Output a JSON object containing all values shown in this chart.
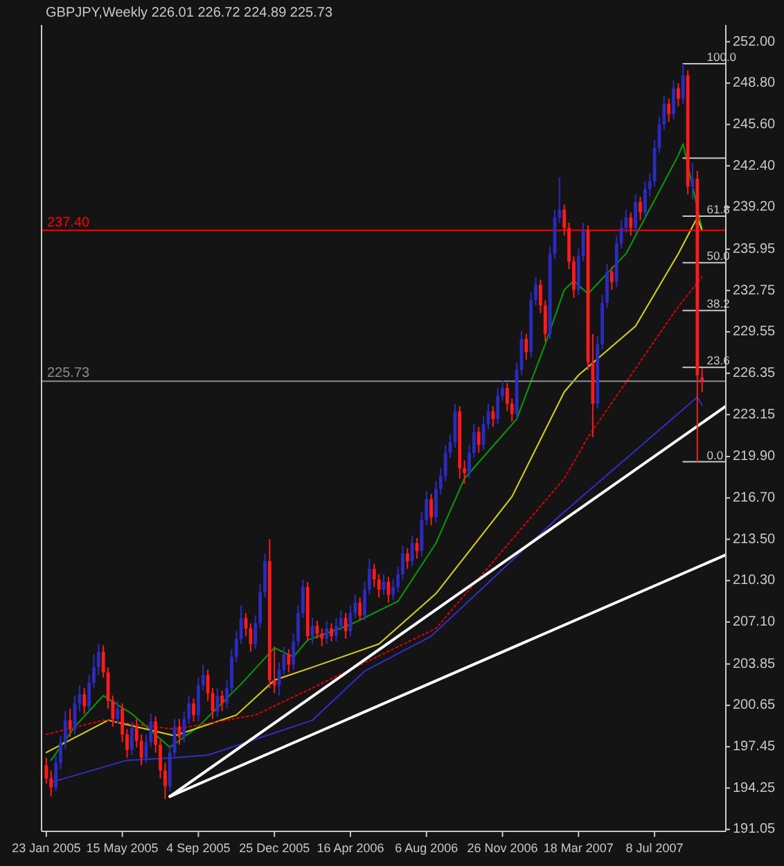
{
  "chart_data": {
    "type": "candlestick",
    "title": "GBPJPY,Weekly  226.01 226.72 224.89 225.73",
    "x": [
      "2005-01-23",
      "2005-01-30",
      "2005-02-06",
      "2005-02-13",
      "2005-02-20",
      "2005-02-27",
      "2005-03-06",
      "2005-03-13",
      "2005-03-20",
      "2005-03-27",
      "2005-04-03",
      "2005-04-10",
      "2005-04-17",
      "2005-04-24",
      "2005-05-01",
      "2005-05-08",
      "2005-05-15",
      "2005-05-22",
      "2005-05-29",
      "2005-06-05",
      "2005-06-12",
      "2005-06-19",
      "2005-06-26",
      "2005-07-03",
      "2005-07-10",
      "2005-07-17",
      "2005-07-24",
      "2005-07-31",
      "2005-08-07",
      "2005-08-14",
      "2005-08-21",
      "2005-08-28",
      "2005-09-04",
      "2005-09-11",
      "2005-09-18",
      "2005-09-25",
      "2005-10-02",
      "2005-10-09",
      "2005-10-16",
      "2005-10-23",
      "2005-10-30",
      "2005-11-06",
      "2005-11-13",
      "2005-11-20",
      "2005-11-27",
      "2005-12-04",
      "2005-12-11",
      "2005-12-18",
      "2005-12-25",
      "2006-01-01",
      "2006-01-08",
      "2006-01-15",
      "2006-01-22",
      "2006-01-29",
      "2006-02-05",
      "2006-02-12",
      "2006-02-19",
      "2006-02-26",
      "2006-03-05",
      "2006-03-12",
      "2006-03-19",
      "2006-03-26",
      "2006-04-02",
      "2006-04-09",
      "2006-04-16",
      "2006-04-23",
      "2006-04-30",
      "2006-05-07",
      "2006-05-14",
      "2006-05-21",
      "2006-05-28",
      "2006-06-04",
      "2006-06-11",
      "2006-06-18",
      "2006-06-25",
      "2006-07-02",
      "2006-07-09",
      "2006-07-16",
      "2006-07-23",
      "2006-07-30",
      "2006-08-06",
      "2006-08-13",
      "2006-08-20",
      "2006-08-27",
      "2006-09-03",
      "2006-09-10",
      "2006-09-17",
      "2006-09-24",
      "2006-10-01",
      "2006-10-08",
      "2006-10-15",
      "2006-10-22",
      "2006-10-29",
      "2006-11-05",
      "2006-11-12",
      "2006-11-19",
      "2006-11-26",
      "2006-12-03",
      "2006-12-10",
      "2006-12-17",
      "2006-12-24",
      "2006-12-31",
      "2007-01-07",
      "2007-01-14",
      "2007-01-21",
      "2007-01-28",
      "2007-02-04",
      "2007-02-11",
      "2007-02-18",
      "2007-02-25",
      "2007-03-04",
      "2007-03-11",
      "2007-03-18",
      "2007-03-25",
      "2007-04-01",
      "2007-04-08",
      "2007-04-15",
      "2007-04-22",
      "2007-04-29",
      "2007-05-06",
      "2007-05-13",
      "2007-05-20",
      "2007-05-27",
      "2007-06-03",
      "2007-06-10",
      "2007-06-17",
      "2007-06-24",
      "2007-07-01",
      "2007-07-08",
      "2007-07-15",
      "2007-07-22",
      "2007-07-29",
      "2007-08-05",
      "2007-08-12",
      "2007-08-19",
      "2007-08-26",
      "2007-09-02",
      "2007-09-09",
      "2007-09-16"
    ],
    "ohlc": [
      [
        196.0,
        196.6,
        194.6,
        195.0
      ],
      [
        195.0,
        195.6,
        193.6,
        194.3
      ],
      [
        194.3,
        196.8,
        194.0,
        196.2
      ],
      [
        196.2,
        198.3,
        195.7,
        197.8
      ],
      [
        197.8,
        200.2,
        197.3,
        199.5
      ],
      [
        199.5,
        200.4,
        198.2,
        198.8
      ],
      [
        198.8,
        201.4,
        198.4,
        200.8
      ],
      [
        200.8,
        202.2,
        200.2,
        201.5
      ],
      [
        201.5,
        202.0,
        200.0,
        200.6
      ],
      [
        200.6,
        203.0,
        200.2,
        202.4
      ],
      [
        202.4,
        204.6,
        202.0,
        203.6
      ],
      [
        203.6,
        205.4,
        203.0,
        204.8
      ],
      [
        204.8,
        205.3,
        202.8,
        203.2
      ],
      [
        203.2,
        203.6,
        200.4,
        201.0
      ],
      [
        201.0,
        201.4,
        199.0,
        199.6
      ],
      [
        199.6,
        201.0,
        199.2,
        200.4
      ],
      [
        200.4,
        200.8,
        197.8,
        198.4
      ],
      [
        198.4,
        198.8,
        196.6,
        197.2
      ],
      [
        197.2,
        199.4,
        196.8,
        198.9
      ],
      [
        198.9,
        199.6,
        197.4,
        197.9
      ],
      [
        197.9,
        198.4,
        196.0,
        196.6
      ],
      [
        196.6,
        198.4,
        196.2,
        197.8
      ],
      [
        197.8,
        200.0,
        197.4,
        199.4
      ],
      [
        199.4,
        199.8,
        197.0,
        197.6
      ],
      [
        197.6,
        198.0,
        195.0,
        195.6
      ],
      [
        195.6,
        196.2,
        193.4,
        194.4
      ],
      [
        194.4,
        197.6,
        194.0,
        197.0
      ],
      [
        197.0,
        199.6,
        196.6,
        199.0
      ],
      [
        199.0,
        199.6,
        197.6,
        198.2
      ],
      [
        198.2,
        200.2,
        197.8,
        199.6
      ],
      [
        199.6,
        201.4,
        199.2,
        200.8
      ],
      [
        200.8,
        201.2,
        199.4,
        199.9
      ],
      [
        199.9,
        202.8,
        199.4,
        202.2
      ],
      [
        202.2,
        203.8,
        201.8,
        203.0
      ],
      [
        203.0,
        203.4,
        201.0,
        201.6
      ],
      [
        201.6,
        202.0,
        199.6,
        200.2
      ],
      [
        200.2,
        202.0,
        199.8,
        201.4
      ],
      [
        201.4,
        201.8,
        200.2,
        200.8
      ],
      [
        200.8,
        202.6,
        200.4,
        202.0
      ],
      [
        202.0,
        205.0,
        201.6,
        204.4
      ],
      [
        204.4,
        206.4,
        204.0,
        205.8
      ],
      [
        205.8,
        208.4,
        205.4,
        207.4
      ],
      [
        207.4,
        207.8,
        206.0,
        206.6
      ],
      [
        206.6,
        207.0,
        204.8,
        205.4
      ],
      [
        205.4,
        207.6,
        205.0,
        207.0
      ],
      [
        207.0,
        210.0,
        206.6,
        209.4
      ],
      [
        209.4,
        212.4,
        209.0,
        211.8
      ],
      [
        211.8,
        213.5,
        202.0,
        202.6
      ],
      [
        202.6,
        205.2,
        201.6,
        202.2
      ],
      [
        202.2,
        204.0,
        201.4,
        203.4
      ],
      [
        203.4,
        205.2,
        203.0,
        204.6
      ],
      [
        204.6,
        205.0,
        203.2,
        203.8
      ],
      [
        203.8,
        206.2,
        203.4,
        205.6
      ],
      [
        205.6,
        208.4,
        205.2,
        207.8
      ],
      [
        207.8,
        210.4,
        207.4,
        209.8
      ],
      [
        209.8,
        210.2,
        205.6,
        206.0
      ],
      [
        206.0,
        207.4,
        205.4,
        206.8
      ],
      [
        206.8,
        207.2,
        205.8,
        206.2
      ],
      [
        206.2,
        206.6,
        205.2,
        205.8
      ],
      [
        205.8,
        207.2,
        205.4,
        206.6
      ],
      [
        206.6,
        207.0,
        205.6,
        206.0
      ],
      [
        206.0,
        207.4,
        205.6,
        206.8
      ],
      [
        206.8,
        208.0,
        206.4,
        207.4
      ],
      [
        207.4,
        207.8,
        205.8,
        206.4
      ],
      [
        206.4,
        208.4,
        206.0,
        207.8
      ],
      [
        207.8,
        209.2,
        207.4,
        208.6
      ],
      [
        208.6,
        209.0,
        207.2,
        207.6
      ],
      [
        207.6,
        210.2,
        207.2,
        209.6
      ],
      [
        209.6,
        212.0,
        209.2,
        211.2
      ],
      [
        211.2,
        211.6,
        209.8,
        210.4
      ],
      [
        210.4,
        210.8,
        209.0,
        209.6
      ],
      [
        209.6,
        210.8,
        209.2,
        210.2
      ],
      [
        210.2,
        210.6,
        208.6,
        209.2
      ],
      [
        209.2,
        210.4,
        208.8,
        209.8
      ],
      [
        209.8,
        211.4,
        209.4,
        210.8
      ],
      [
        210.8,
        213.0,
        210.4,
        212.4
      ],
      [
        212.4,
        212.8,
        211.2,
        211.8
      ],
      [
        211.8,
        213.8,
        211.4,
        213.2
      ],
      [
        213.2,
        213.6,
        212.0,
        212.6
      ],
      [
        212.6,
        215.6,
        212.2,
        215.0
      ],
      [
        215.0,
        217.2,
        214.6,
        216.6
      ],
      [
        216.6,
        217.0,
        214.6,
        215.2
      ],
      [
        215.2,
        218.0,
        214.8,
        217.4
      ],
      [
        217.4,
        219.0,
        217.0,
        218.4
      ],
      [
        218.4,
        220.8,
        218.0,
        220.2
      ],
      [
        220.2,
        221.6,
        219.8,
        221.0
      ],
      [
        221.0,
        224.0,
        220.6,
        223.4
      ],
      [
        223.4,
        223.8,
        218.2,
        219.0
      ],
      [
        219.0,
        219.6,
        217.8,
        218.6
      ],
      [
        218.6,
        220.8,
        218.2,
        220.2
      ],
      [
        220.2,
        222.4,
        219.8,
        221.8
      ],
      [
        221.8,
        222.2,
        220.2,
        220.8
      ],
      [
        220.8,
        223.0,
        220.4,
        222.4
      ],
      [
        222.4,
        224.0,
        222.0,
        223.4
      ],
      [
        223.4,
        223.8,
        222.2,
        222.8
      ],
      [
        222.8,
        225.2,
        222.4,
        224.6
      ],
      [
        224.6,
        225.8,
        224.2,
        225.2
      ],
      [
        225.2,
        225.6,
        223.4,
        224.0
      ],
      [
        224.0,
        224.4,
        222.6,
        223.2
      ],
      [
        223.2,
        227.2,
        222.8,
        226.6
      ],
      [
        226.6,
        229.6,
        226.2,
        229.0
      ],
      [
        229.0,
        229.4,
        227.4,
        228.0
      ],
      [
        228.0,
        232.6,
        227.6,
        232.0
      ],
      [
        232.0,
        233.8,
        231.6,
        233.2
      ],
      [
        233.2,
        233.6,
        231.0,
        231.6
      ],
      [
        231.6,
        232.0,
        228.8,
        229.4
      ],
      [
        229.4,
        236.2,
        229.0,
        235.6
      ],
      [
        235.6,
        239.0,
        235.2,
        238.4
      ],
      [
        238.4,
        241.5,
        238.0,
        239.0
      ],
      [
        239.0,
        239.4,
        237.0,
        237.6
      ],
      [
        237.6,
        238.0,
        234.4,
        235.0
      ],
      [
        235.0,
        235.4,
        232.2,
        232.8
      ],
      [
        232.8,
        236.0,
        232.4,
        235.4
      ],
      [
        235.4,
        238.0,
        235.0,
        237.4
      ],
      [
        237.4,
        237.8,
        226.6,
        227.2
      ],
      [
        227.2,
        229.4,
        221.4,
        224.0
      ],
      [
        224.0,
        229.2,
        223.6,
        228.6
      ],
      [
        228.6,
        232.4,
        228.2,
        231.8
      ],
      [
        231.8,
        234.8,
        231.4,
        234.2
      ],
      [
        234.2,
        234.6,
        232.8,
        233.4
      ],
      [
        233.4,
        237.0,
        233.0,
        236.4
      ],
      [
        236.4,
        238.2,
        236.0,
        237.6
      ],
      [
        237.6,
        239.0,
        237.2,
        238.4
      ],
      [
        238.4,
        238.8,
        237.0,
        237.6
      ],
      [
        237.6,
        240.2,
        237.2,
        239.6
      ],
      [
        239.6,
        240.0,
        238.2,
        238.8
      ],
      [
        238.8,
        241.2,
        238.4,
        240.6
      ],
      [
        240.6,
        241.8,
        240.0,
        241.2
      ],
      [
        241.2,
        244.4,
        240.8,
        243.8
      ],
      [
        243.8,
        246.2,
        243.4,
        245.6
      ],
      [
        245.6,
        247.8,
        245.2,
        247.2
      ],
      [
        247.2,
        247.6,
        245.8,
        246.4
      ],
      [
        246.4,
        249.0,
        246.0,
        248.4
      ],
      [
        248.4,
        248.8,
        247.0,
        247.6
      ],
      [
        247.6,
        250.3,
        247.2,
        249.4
      ],
      [
        249.4,
        249.8,
        240.2,
        240.8
      ],
      [
        240.8,
        242.6,
        239.8,
        241.4
      ],
      [
        241.4,
        242.0,
        219.5,
        226.2
      ],
      [
        226.01,
        226.72,
        224.89,
        225.73
      ]
    ],
    "series": [
      {
        "type": "line",
        "color": "#00a000",
        "x": [
          "2005-01-30",
          "2005-03-06",
          "2005-04-17",
          "2005-05-29",
          "2005-07-24",
          "2005-09-04",
          "2005-11-06",
          "2005-12-25",
          "2006-01-22",
          "2006-02-12",
          "2006-04-16",
          "2006-06-25",
          "2006-08-20",
          "2006-10-01",
          "2006-12-17",
          "2007-01-28",
          "2007-02-25",
          "2007-03-11",
          "2007-04-01",
          "2007-05-27",
          "2007-08-12",
          "2007-08-19",
          "2007-09-16"
        ],
        "values": [
          196.4,
          199.0,
          201.4,
          200.0,
          197.4,
          199.0,
          202.3,
          205.1,
          204.4,
          205.7,
          206.9,
          208.7,
          213.2,
          218.2,
          222.8,
          228.6,
          232.8,
          233.5,
          232.5,
          235.6,
          243.2,
          244.1,
          237.5
        ]
      },
      {
        "type": "line",
        "color": "#d8d800",
        "x": [
          "2005-01-23",
          "2005-04-24",
          "2005-07-31",
          "2005-10-30",
          "2005-12-25",
          "2006-02-19",
          "2006-05-28",
          "2006-08-20",
          "2006-12-10",
          "2007-02-25",
          "2007-03-18",
          "2007-06-10",
          "2007-08-12",
          "2007-09-09",
          "2007-09-16"
        ],
        "values": [
          197.0,
          199.5,
          198.3,
          199.9,
          202.6,
          203.6,
          205.4,
          209.3,
          216.8,
          224.9,
          226.2,
          230.0,
          235.6,
          238.4,
          237.4
        ]
      },
      {
        "type": "line",
        "color": "#e00000",
        "line_style": "dotted",
        "x": [
          "2005-01-23",
          "2005-04-17",
          "2005-07-31",
          "2005-11-27",
          "2006-02-19",
          "2006-08-20",
          "2007-02-25",
          "2007-04-01",
          "2007-08-12",
          "2007-09-16"
        ],
        "values": [
          198.4,
          199.5,
          198.8,
          199.9,
          202.0,
          206.6,
          218.2,
          221.4,
          231.5,
          233.8
        ]
      },
      {
        "type": "line",
        "color": "#3030c8",
        "x": [
          "2005-01-30",
          "2005-05-22",
          "2005-07-31",
          "2005-09-18",
          "2006-02-19",
          "2006-05-07",
          "2006-08-13",
          "2007-02-18",
          "2007-09-09",
          "2007-09-16"
        ],
        "values": [
          194.7,
          196.4,
          196.6,
          196.8,
          199.5,
          203.3,
          206.0,
          215.3,
          224.5,
          223.9
        ]
      },
      {
        "type": "line",
        "color": "#ffffff",
        "x": [
          "2005-07-24",
          "2007-10-21"
        ],
        "values": [
          193.6,
          223.8
        ]
      },
      {
        "type": "line",
        "color": "#ffffff",
        "x": [
          "2005-07-24",
          "2007-10-21"
        ],
        "values": [
          193.6,
          212.3
        ]
      },
      {
        "type": "line",
        "color": "#c8c8c8",
        "x": [
          "2007-08-19",
          "2007-10-21"
        ],
        "values": [
          250.3,
          250.3
        ]
      },
      {
        "type": "line",
        "color": "#c8c8c8",
        "x": [
          "2007-08-19",
          "2007-10-21"
        ],
        "values": [
          243.0,
          243.0
        ]
      },
      {
        "type": "line",
        "color": "#c8c8c8",
        "x": [
          "2007-08-19",
          "2007-10-21"
        ],
        "values": [
          238.5,
          238.5
        ]
      },
      {
        "type": "line",
        "color": "#c8c8c8",
        "x": [
          "2007-08-19",
          "2007-10-21"
        ],
        "values": [
          234.9,
          234.9
        ]
      },
      {
        "type": "line",
        "color": "#c8c8c8",
        "x": [
          "2007-08-19",
          "2007-10-21"
        ],
        "values": [
          231.2,
          231.2
        ]
      },
      {
        "type": "line",
        "color": "#c8c8c8",
        "x": [
          "2007-08-19",
          "2007-10-21"
        ],
        "values": [
          226.8,
          226.8
        ]
      },
      {
        "type": "line",
        "color": "#c8c8c8",
        "x": [
          "2007-08-19",
          "2007-10-21"
        ],
        "values": [
          219.5,
          219.5
        ]
      }
    ],
    "ref_lines": [
      {
        "axis": "y",
        "value": 237.4,
        "label": "237.40",
        "color": "#ff0000"
      },
      {
        "axis": "y",
        "value": 225.73,
        "label": "225.73",
        "color": "#8c8c8c"
      }
    ],
    "annotations": [
      {
        "text": "100.0",
        "x": "2007-09-23",
        "y": 250.3
      },
      {
        "text": "61.8",
        "x": "2007-09-23",
        "y": 238.5
      },
      {
        "text": "50.0",
        "x": "2007-09-23",
        "y": 234.9
      },
      {
        "text": "38.2",
        "x": "2007-09-23",
        "y": 231.2
      },
      {
        "text": "23.6",
        "x": "2007-09-23",
        "y": 226.8
      },
      {
        "text": "0.0",
        "x": "2007-09-23",
        "y": 219.5
      }
    ],
    "xlim": [
      "2005-01-16",
      "2007-10-21"
    ],
    "xticks": [
      {
        "value": "2005-01-23",
        "label": "23 Jan 2005"
      },
      {
        "value": "2005-05-15",
        "label": "15 May 2005"
      },
      {
        "value": "2005-09-04",
        "label": "4 Sep 2005"
      },
      {
        "value": "2005-12-25",
        "label": "25 Dec 2005"
      },
      {
        "value": "2006-04-16",
        "label": "16 Apr 2006"
      },
      {
        "value": "2006-08-06",
        "label": "6 Aug 2006"
      },
      {
        "value": "2006-11-26",
        "label": "26 Nov 2006"
      },
      {
        "value": "2007-03-18",
        "label": "18 Mar 2007"
      },
      {
        "value": "2007-07-08",
        "label": "8 Jul 2007"
      }
    ],
    "ylim": [
      190.9,
      253.3
    ],
    "yticks": [
      {
        "value": 252,
        "label": "252.00"
      },
      {
        "value": 248.8,
        "label": "248.80"
      },
      {
        "value": 245.6,
        "label": "245.60"
      },
      {
        "value": 242.4,
        "label": "242.40"
      },
      {
        "value": 239.2,
        "label": "239.20"
      },
      {
        "value": 235.95,
        "label": "235.95"
      },
      {
        "value": 232.75,
        "label": "232.75"
      },
      {
        "value": 229.55,
        "label": "229.55"
      },
      {
        "value": 226.35,
        "label": "226.35"
      },
      {
        "value": 223.15,
        "label": "223.15"
      },
      {
        "value": 219.9,
        "label": "219.90"
      },
      {
        "value": 216.7,
        "label": "216.70"
      },
      {
        "value": 213.5,
        "label": "213.50"
      },
      {
        "value": 210.3,
        "label": "210.30"
      },
      {
        "value": 207.1,
        "label": "207.10"
      },
      {
        "value": 203.85,
        "label": "203.85"
      },
      {
        "value": 200.65,
        "label": "200.65"
      },
      {
        "value": 197.45,
        "label": "197.45"
      },
      {
        "value": 194.25,
        "label": "194.25"
      },
      {
        "value": 191.05,
        "label": "191.05"
      }
    ]
  }
}
